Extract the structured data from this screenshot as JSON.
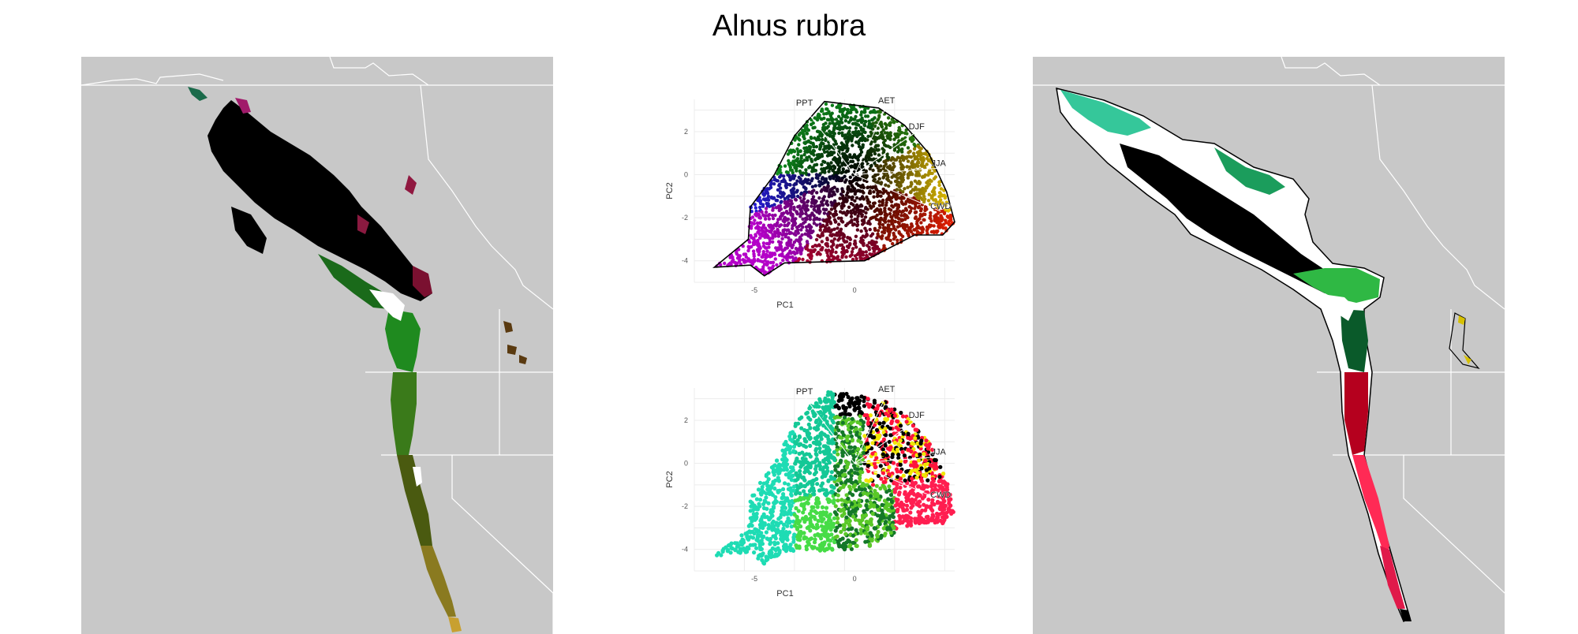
{
  "title": "Alnus rubra",
  "colors": {
    "land": "#c8c8c8",
    "border": "#ffffff",
    "grid": "#ececec",
    "hull": "#000000",
    "palette_top": [
      "#000000",
      "#1f7a1f",
      "#2aa52a",
      "#00b400",
      "#7a0f3a",
      "#a02050",
      "#c80000",
      "#e05a00",
      "#ffd400",
      "#8a00c8",
      "#c000c0",
      "#0000c8"
    ],
    "palette_bottom": [
      "#000000",
      "#00c896",
      "#10d0a0",
      "#00e080",
      "#40e040",
      "#70d020",
      "#ff2050",
      "#ff0050",
      "#ffff00",
      "#9c2a40"
    ],
    "range_fill": [
      "#35c79a",
      "#000000",
      "#1b9d5c",
      "#2fb844",
      "#0a5a2a",
      "#b5001e",
      "#ff2a55",
      "#e01a4a",
      "#d6c000"
    ]
  },
  "chart_data": [
    {
      "type": "scatter",
      "panel": "top",
      "x_label": "PC1",
      "y_label": "PC2",
      "x_ticks": [
        "-5",
        "0"
      ],
      "x_tick_values": [
        -5,
        0
      ],
      "y_ticks": [
        "2",
        "0",
        "-2",
        "-4"
      ],
      "y_tick_values": [
        2,
        0,
        -2,
        -4
      ],
      "xlim": [
        -8,
        5
      ],
      "ylim": [
        -5,
        3.5
      ],
      "grid": true,
      "vectors": [
        {
          "label": "PPT",
          "x": -2.5,
          "y": 3.1
        },
        {
          "label": "AET",
          "x": 1.6,
          "y": 3.2
        },
        {
          "label": "DJF",
          "x": 3.1,
          "y": 2.0
        },
        {
          "label": "JJA",
          "x": 4.2,
          "y": 0.3
        },
        {
          "label": "CWD",
          "x": 4.3,
          "y": -1.7
        }
      ],
      "hull": [
        [
          -1.5,
          3.4
        ],
        [
          1.2,
          3.1
        ],
        [
          2.5,
          2.3
        ],
        [
          3.7,
          1.0
        ],
        [
          4.6,
          -0.8
        ],
        [
          5.0,
          -2.2
        ],
        [
          4.4,
          -2.8
        ],
        [
          3.0,
          -2.8
        ],
        [
          0.5,
          -4.0
        ],
        [
          -3.5,
          -4.1
        ],
        [
          -4.5,
          -4.7
        ],
        [
          -5.2,
          -4.2
        ],
        [
          -7.0,
          -4.3
        ],
        [
          -5.3,
          -3.0
        ],
        [
          -5.2,
          -1.5
        ],
        [
          -4.8,
          -1.0
        ],
        [
          -4.0,
          0.0
        ],
        [
          -3.0,
          1.8
        ]
      ]
    },
    {
      "type": "scatter",
      "panel": "bottom",
      "x_label": "PC1",
      "y_label": "PC2",
      "x_ticks": [
        "-5",
        "0"
      ],
      "x_tick_values": [
        -5,
        0
      ],
      "y_ticks": [
        "2",
        "0",
        "-2",
        "-4"
      ],
      "y_tick_values": [
        2,
        0,
        -2,
        -4
      ],
      "xlim": [
        -8,
        5
      ],
      "ylim": [
        -5,
        3.5
      ],
      "grid": true,
      "vectors": [
        {
          "label": "PPT",
          "x": -2.5,
          "y": 3.1
        },
        {
          "label": "AET",
          "x": 1.6,
          "y": 3.2
        },
        {
          "label": "DJF",
          "x": 3.1,
          "y": 2.0
        },
        {
          "label": "JJA",
          "x": 4.2,
          "y": 0.3
        },
        {
          "label": "CWD",
          "x": 4.3,
          "y": -1.7
        }
      ]
    }
  ]
}
